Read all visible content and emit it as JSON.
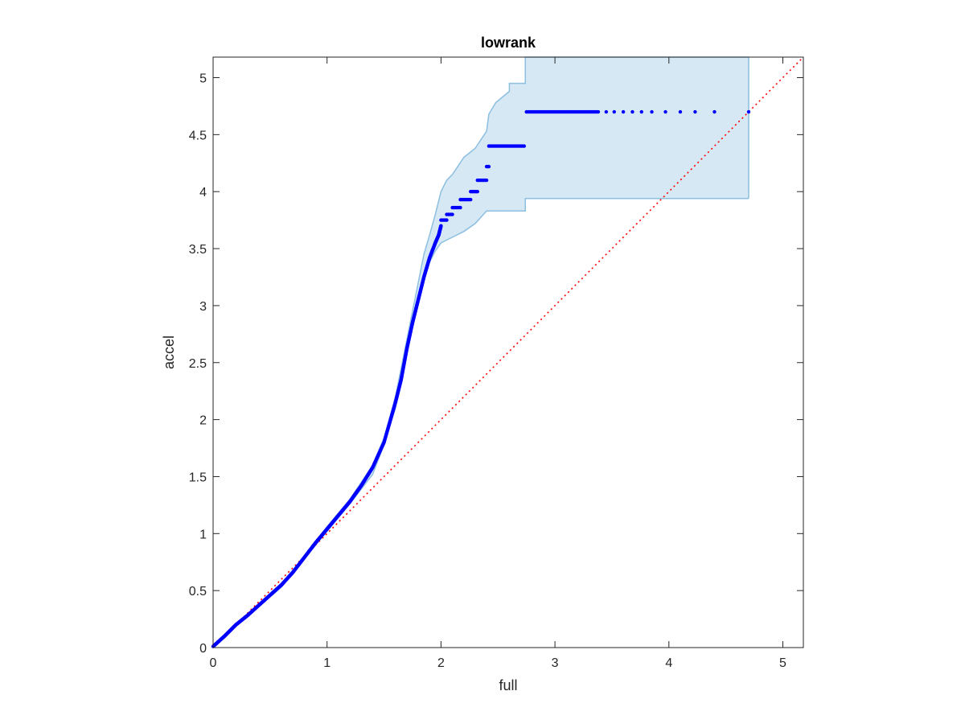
{
  "chart_data": {
    "type": "scatter",
    "title": "lowrank",
    "xlabel": "full",
    "ylabel": "accel",
    "xlim": [
      0,
      5.18
    ],
    "ylim": [
      0,
      5.18
    ],
    "xticks": [
      "0",
      "1",
      "2",
      "3",
      "4",
      "5"
    ],
    "yticks": [
      "0",
      "0.5",
      "1",
      "1.5",
      "2",
      "2.5",
      "3",
      "3.5",
      "4",
      "4.5",
      "5"
    ],
    "grid": false,
    "reference_line": {
      "style": "dotted",
      "color": "#ff0000",
      "from": [
        0,
        0
      ],
      "to": [
        5.18,
        5.18
      ]
    },
    "confidence_band": {
      "color": "#d6e8f4",
      "edge_color": "#8cbfe0",
      "upper": [
        [
          0,
          0.02
        ],
        [
          0.2,
          0.21
        ],
        [
          0.4,
          0.38
        ],
        [
          0.6,
          0.56
        ],
        [
          0.8,
          0.8
        ],
        [
          1.0,
          1.06
        ],
        [
          1.2,
          1.3
        ],
        [
          1.4,
          1.6
        ],
        [
          1.5,
          1.84
        ],
        [
          1.6,
          2.2
        ],
        [
          1.7,
          2.7
        ],
        [
          1.78,
          3.1
        ],
        [
          1.85,
          3.45
        ],
        [
          1.9,
          3.62
        ],
        [
          1.95,
          3.8
        ],
        [
          2.0,
          4.0
        ],
        [
          2.05,
          4.1
        ],
        [
          2.1,
          4.15
        ],
        [
          2.2,
          4.3
        ],
        [
          2.3,
          4.38
        ],
        [
          2.4,
          4.53
        ],
        [
          2.42,
          4.68
        ],
        [
          2.48,
          4.78
        ],
        [
          2.6,
          4.88
        ],
        [
          2.6,
          4.95
        ],
        [
          2.74,
          4.95
        ],
        [
          2.74,
          5.18
        ],
        [
          4.7,
          5.18
        ]
      ],
      "lower": [
        [
          0,
          0.0
        ],
        [
          0.2,
          0.19
        ],
        [
          0.4,
          0.36
        ],
        [
          0.6,
          0.53
        ],
        [
          0.8,
          0.78
        ],
        [
          1.0,
          1.02
        ],
        [
          1.2,
          1.26
        ],
        [
          1.4,
          1.52
        ],
        [
          1.5,
          1.78
        ],
        [
          1.6,
          2.1
        ],
        [
          1.7,
          2.6
        ],
        [
          1.78,
          2.98
        ],
        [
          1.85,
          3.25
        ],
        [
          1.9,
          3.38
        ],
        [
          1.95,
          3.48
        ],
        [
          2.0,
          3.55
        ],
        [
          2.1,
          3.6
        ],
        [
          2.2,
          3.65
        ],
        [
          2.3,
          3.72
        ],
        [
          2.4,
          3.83
        ],
        [
          2.74,
          3.83
        ],
        [
          2.74,
          3.94
        ],
        [
          4.7,
          3.94
        ]
      ]
    },
    "series": [
      {
        "color": "#0000ff",
        "curve": [
          [
            0,
            0.01
          ],
          [
            0.1,
            0.1
          ],
          [
            0.2,
            0.2
          ],
          [
            0.3,
            0.28
          ],
          [
            0.4,
            0.37
          ],
          [
            0.5,
            0.46
          ],
          [
            0.6,
            0.55
          ],
          [
            0.7,
            0.66
          ],
          [
            0.8,
            0.79
          ],
          [
            0.9,
            0.92
          ],
          [
            1.0,
            1.04
          ],
          [
            1.1,
            1.16
          ],
          [
            1.2,
            1.28
          ],
          [
            1.3,
            1.42
          ],
          [
            1.4,
            1.58
          ],
          [
            1.5,
            1.8
          ],
          [
            1.6,
            2.15
          ],
          [
            1.65,
            2.35
          ],
          [
            1.7,
            2.62
          ],
          [
            1.75,
            2.85
          ],
          [
            1.8,
            3.05
          ],
          [
            1.85,
            3.25
          ],
          [
            1.9,
            3.42
          ],
          [
            1.95,
            3.55
          ],
          [
            1.98,
            3.62
          ],
          [
            2.0,
            3.7
          ]
        ],
        "steps": [
          {
            "x0": 2.0,
            "x1": 2.05,
            "y": 3.75
          },
          {
            "x0": 2.05,
            "x1": 2.1,
            "y": 3.8
          },
          {
            "x0": 2.1,
            "x1": 2.17,
            "y": 3.86
          },
          {
            "x0": 2.17,
            "x1": 2.26,
            "y": 3.93
          },
          {
            "x0": 2.26,
            "x1": 2.32,
            "y": 4.0
          },
          {
            "x0": 2.32,
            "x1": 2.4,
            "y": 4.1
          },
          {
            "x0": 2.4,
            "x1": 2.42,
            "y": 4.22
          },
          {
            "x0": 2.42,
            "x1": 2.73,
            "y": 4.4
          },
          {
            "x0": 2.75,
            "x1": 3.38,
            "y": 4.7
          }
        ],
        "isolated": [
          [
            3.45,
            4.7
          ],
          [
            3.52,
            4.7
          ],
          [
            3.6,
            4.7
          ],
          [
            3.68,
            4.7
          ],
          [
            3.76,
            4.7
          ],
          [
            3.85,
            4.7
          ],
          [
            3.97,
            4.7
          ],
          [
            4.1,
            4.7
          ],
          [
            4.23,
            4.7
          ],
          [
            4.4,
            4.7
          ],
          [
            4.7,
            4.7
          ]
        ]
      }
    ]
  }
}
